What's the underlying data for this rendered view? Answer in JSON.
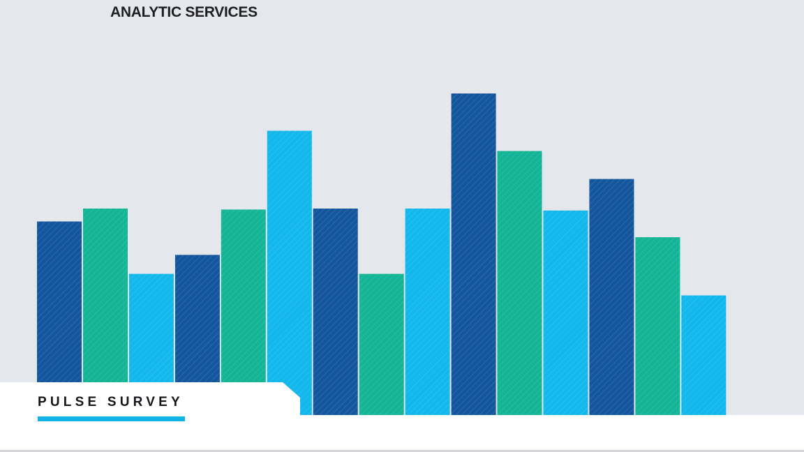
{
  "header": {
    "brand": "ANALYTIC SERVICES"
  },
  "footer_card": {
    "title": "PULSE SURVEY"
  },
  "colors": {
    "background": "#e4e7eb",
    "dark_blue": "#14569e",
    "teal": "#13b596",
    "light_blue": "#12b8ec",
    "accent_underline": "#12b4e8"
  },
  "chart_data": {
    "type": "bar",
    "title": "",
    "xlabel": "",
    "ylabel": "",
    "grid": false,
    "ylim": [
      0,
      100
    ],
    "values": [
      60.2,
      64.2,
      43.9,
      49.8,
      63.9,
      88.4,
      64.2,
      43.9,
      64.2,
      100,
      82.1,
      63.6,
      73.4,
      55.3,
      37.2
    ],
    "colors": [
      "dark_blue",
      "teal",
      "light_blue",
      "dark_blue",
      "teal",
      "light_blue",
      "dark_blue",
      "teal",
      "light_blue",
      "dark_blue",
      "teal",
      "light_blue",
      "dark_blue",
      "teal",
      "light_blue"
    ]
  }
}
